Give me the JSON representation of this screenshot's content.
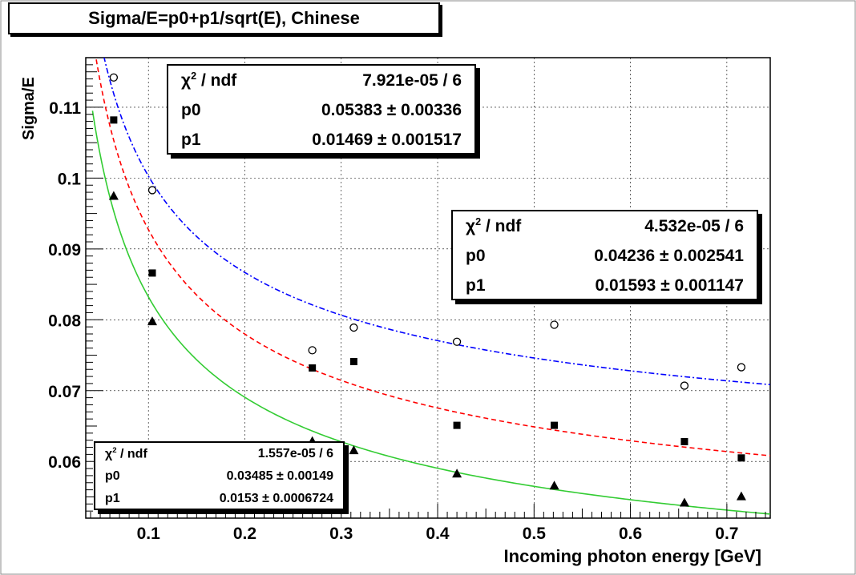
{
  "chart_data": {
    "type": "scatter",
    "title": "Sigma/E=p0+p1/sqrt(E), Chinese",
    "xlabel": "Incoming photon energy [GeV]",
    "ylabel": "Sigma/E",
    "xlim": [
      0.035,
      0.745
    ],
    "ylim": [
      0.052,
      0.117
    ],
    "x_ticks": [
      0.1,
      0.2,
      0.3,
      0.4,
      0.5,
      0.6,
      0.7
    ],
    "x_tick_labels": [
      "0.1",
      "0.2",
      "0.3",
      "0.4",
      "0.5",
      "0.6",
      "0.7"
    ],
    "y_ticks": [
      0.06,
      0.07,
      0.08,
      0.09,
      0.1,
      0.11
    ],
    "y_tick_labels": [
      "0.06",
      "0.07",
      "0.08",
      "0.09",
      "0.1",
      "0.11"
    ],
    "grid": true,
    "series": [
      {
        "name": "open-circle",
        "marker": "open-circle",
        "color": "#0000ff",
        "fit_style": "dash-dot",
        "x": [
          0.064,
          0.104,
          0.27,
          0.313,
          0.42,
          0.521,
          0.656,
          0.715
        ],
        "y": [
          0.1142,
          0.0983,
          0.0757,
          0.0789,
          0.0769,
          0.0793,
          0.0707,
          0.0733
        ],
        "fit": {
          "p0": 0.05383,
          "p1": 0.01469
        }
      },
      {
        "name": "filled-square",
        "marker": "filled-square",
        "color": "#ff0000",
        "fit_style": "dashed",
        "x": [
          0.064,
          0.104,
          0.27,
          0.313,
          0.42,
          0.521,
          0.656,
          0.715
        ],
        "y": [
          0.1082,
          0.0866,
          0.0732,
          0.0741,
          0.0651,
          0.0651,
          0.0628,
          0.0605
        ],
        "fit": {
          "p0": 0.04236,
          "p1": 0.01593
        }
      },
      {
        "name": "filled-triangle",
        "marker": "filled-triangle",
        "color": "#33cc33",
        "fit_style": "solid",
        "x": [
          0.064,
          0.104,
          0.27,
          0.313,
          0.42,
          0.521,
          0.656,
          0.715
        ],
        "y": [
          0.0975,
          0.0798,
          0.0629,
          0.0616,
          0.0583,
          0.0566,
          0.0542,
          0.0551
        ],
        "fit": {
          "p0": 0.03485,
          "p1": 0.0153
        }
      }
    ],
    "stat_boxes": [
      {
        "rows": [
          {
            "key": "χ2 / ndf",
            "value": "7.921e-05 / 6"
          },
          {
            "key": "p0",
            "value": "0.05383 ± 0.00336"
          },
          {
            "key": "p1",
            "value": "0.01469 ± 0.001517"
          }
        ]
      },
      {
        "rows": [
          {
            "key": "χ2 / ndf",
            "value": "4.532e-05 / 6"
          },
          {
            "key": "p0",
            "value": "0.04236 ± 0.002541"
          },
          {
            "key": "p1",
            "value": "0.01593 ± 0.001147"
          }
        ]
      },
      {
        "rows": [
          {
            "key": "χ2 / ndf",
            "value": "1.557e-05 / 6"
          },
          {
            "key": "p0",
            "value": "0.03485 ± 0.00149"
          },
          {
            "key": "p1",
            "value": "0.0153 ± 0.0006724"
          }
        ]
      }
    ]
  }
}
